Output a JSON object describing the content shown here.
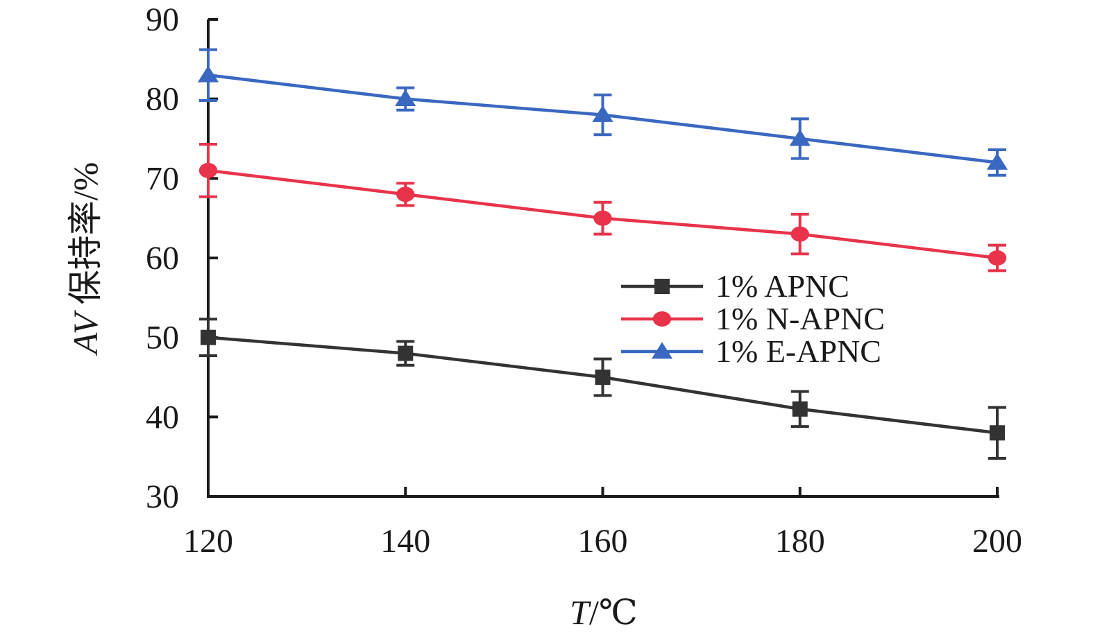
{
  "chart_data": {
    "type": "line",
    "x": [
      120,
      140,
      160,
      180,
      200
    ],
    "xlabel": "T/℃",
    "xlabel_italic": "T",
    "xlabel_unit": "/℃",
    "ylabel": "AV 保持率/%",
    "ylabel_italic": "AV",
    "ylabel_rest": " 保持率/%",
    "xlim": [
      120,
      200
    ],
    "ylim": [
      30,
      90
    ],
    "xticks": [
      "120",
      "140",
      "160",
      "180",
      "200"
    ],
    "yticks": [
      "30",
      "40",
      "50",
      "60",
      "70",
      "80",
      "90"
    ],
    "grid": false,
    "legend_position": "center-right",
    "series": [
      {
        "name": "1% APNC",
        "color": "#333333",
        "marker": "square",
        "values": [
          50,
          48,
          45,
          41,
          38
        ],
        "errors": [
          2.3,
          1.5,
          2.3,
          2.2,
          3.2
        ]
      },
      {
        "name": "1% N-APNC",
        "color": "#e8334a",
        "marker": "circle",
        "values": [
          71,
          68,
          65,
          63,
          60
        ],
        "errors": [
          3.3,
          1.4,
          2.0,
          2.5,
          1.6
        ]
      },
      {
        "name": "1% E-APNC",
        "color": "#3a68c0",
        "marker": "triangle",
        "values": [
          83,
          80,
          78,
          75,
          72
        ],
        "errors": [
          3.2,
          1.4,
          2.5,
          2.5,
          1.6
        ]
      }
    ]
  }
}
